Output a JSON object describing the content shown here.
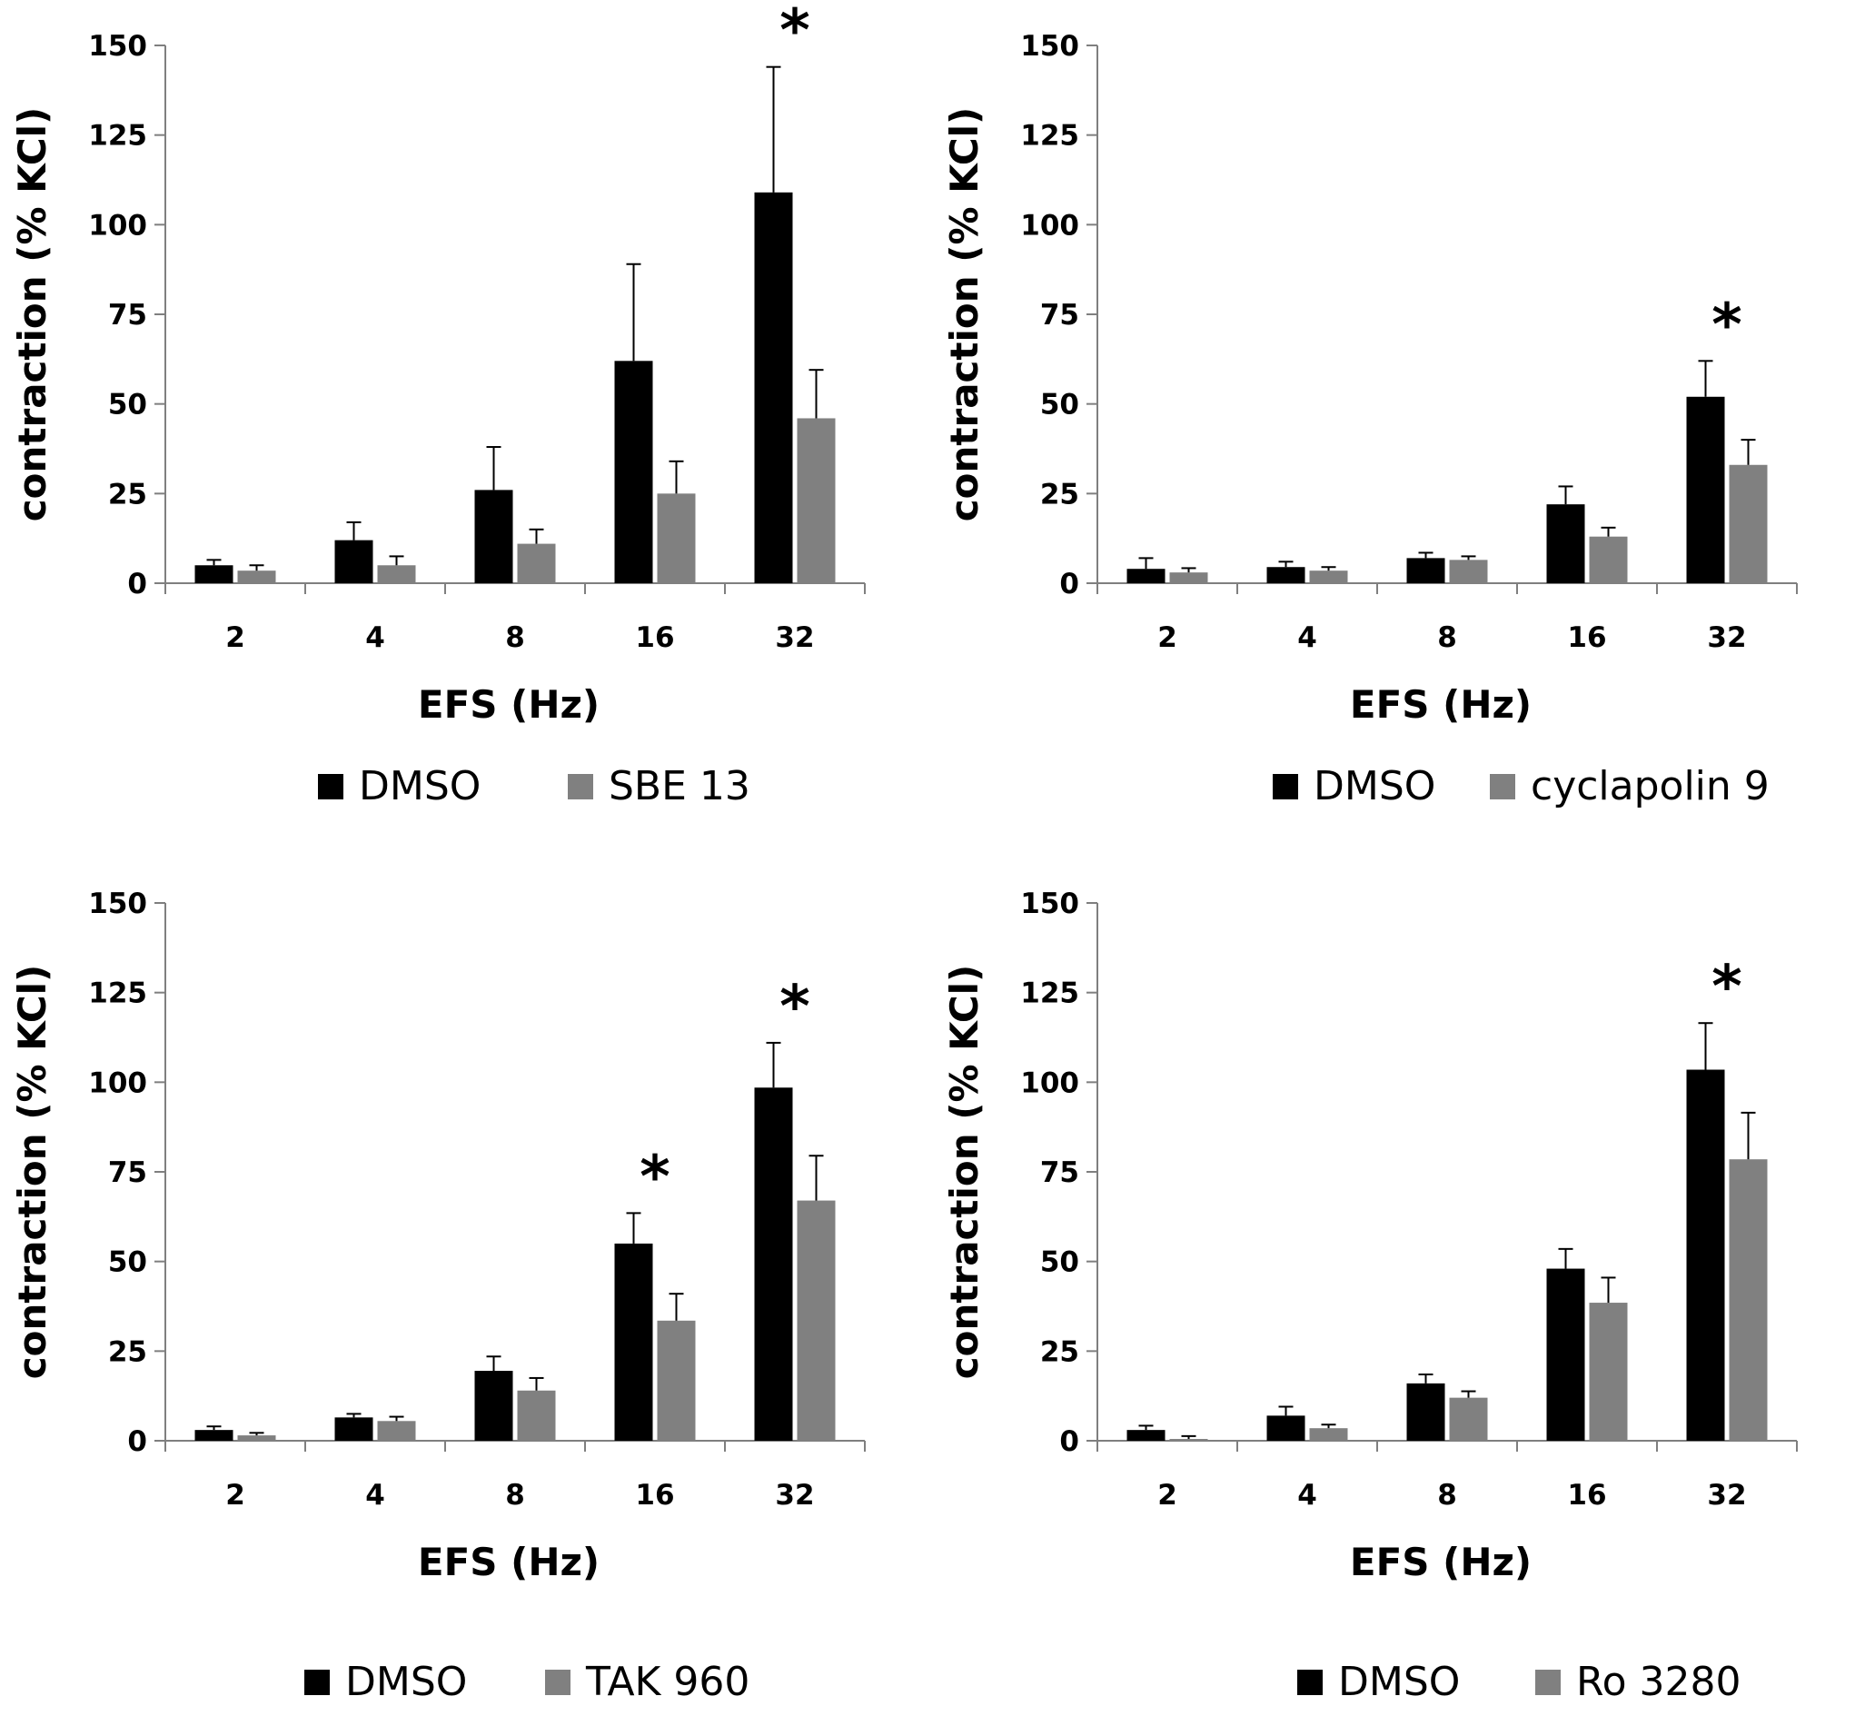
{
  "chart_data": [
    {
      "type": "bar",
      "panel": "top-left",
      "xlabel": "EFS (Hz)",
      "ylabel": "contraction (% KCl)",
      "ylim": [
        0,
        150
      ],
      "yticks": [
        "0",
        "25",
        "50",
        "75",
        "100",
        "125",
        "150"
      ],
      "categories": [
        "2",
        "4",
        "8",
        "16",
        "32"
      ],
      "series": [
        {
          "name": "DMSO",
          "color": "#000000",
          "values": [
            5,
            12,
            26,
            62,
            109
          ],
          "errors": [
            1.5,
            5,
            12,
            27,
            35
          ]
        },
        {
          "name": "SBE 13",
          "color": "#808080",
          "values": [
            3.5,
            5,
            11,
            25,
            46
          ],
          "errors": [
            1.5,
            2.5,
            4,
            9,
            13.5
          ]
        }
      ],
      "significance": [
        {
          "category": "32",
          "label": "*"
        }
      ],
      "legend": "bottom"
    },
    {
      "type": "bar",
      "panel": "top-right",
      "xlabel": "EFS (Hz)",
      "ylabel": "contraction (% KCl)",
      "ylim": [
        0,
        150
      ],
      "yticks": [
        "0",
        "25",
        "50",
        "75",
        "100",
        "125",
        "150"
      ],
      "categories": [
        "2",
        "4",
        "8",
        "16",
        "32"
      ],
      "series": [
        {
          "name": "DMSO",
          "color": "#000000",
          "values": [
            4,
            4.5,
            7,
            22,
            52
          ],
          "errors": [
            3,
            1.5,
            1.5,
            5,
            10
          ]
        },
        {
          "name": "cyclapolin 9",
          "color": "#808080",
          "values": [
            3,
            3.5,
            6.5,
            13,
            33
          ],
          "errors": [
            1.2,
            1,
            1,
            2.5,
            7
          ]
        }
      ],
      "significance": [
        {
          "category": "32",
          "label": "*"
        }
      ],
      "legend": "bottom"
    },
    {
      "type": "bar",
      "panel": "bottom-left",
      "xlabel": "EFS (Hz)",
      "ylabel": "contraction (% KCl)",
      "ylim": [
        0,
        150
      ],
      "yticks": [
        "0",
        "25",
        "50",
        "75",
        "100",
        "125",
        "150"
      ],
      "categories": [
        "2",
        "4",
        "8",
        "16",
        "32"
      ],
      "series": [
        {
          "name": "DMSO",
          "color": "#000000",
          "values": [
            3,
            6.5,
            19.5,
            55,
            98.5
          ],
          "errors": [
            1,
            1,
            4,
            8.5,
            12.5
          ]
        },
        {
          "name": "TAK 960",
          "color": "#808080",
          "values": [
            1.5,
            5.5,
            14,
            33.5,
            67
          ],
          "errors": [
            0.7,
            1.2,
            3.5,
            7.5,
            12.5
          ]
        }
      ],
      "significance": [
        {
          "category": "16",
          "label": "*"
        },
        {
          "category": "32",
          "label": "*"
        }
      ],
      "legend": "bottom"
    },
    {
      "type": "bar",
      "panel": "bottom-right",
      "xlabel": "EFS (Hz)",
      "ylabel": "contraction (% KCl)",
      "ylim": [
        0,
        150
      ],
      "yticks": [
        "0",
        "25",
        "50",
        "75",
        "100",
        "125",
        "150"
      ],
      "categories": [
        "2",
        "4",
        "8",
        "16",
        "32"
      ],
      "series": [
        {
          "name": "DMSO",
          "color": "#000000",
          "values": [
            3,
            7,
            16,
            48,
            103.5
          ],
          "errors": [
            1.2,
            2.5,
            2.5,
            5.5,
            13
          ]
        },
        {
          "name": "Ro 3280",
          "color": "#808080",
          "values": [
            0.5,
            3.5,
            12,
            38.5,
            78.5
          ],
          "errors": [
            0.8,
            1,
            1.8,
            7,
            13
          ]
        }
      ],
      "significance": [
        {
          "category": "32",
          "label": "*"
        }
      ],
      "legend": "bottom"
    }
  ]
}
